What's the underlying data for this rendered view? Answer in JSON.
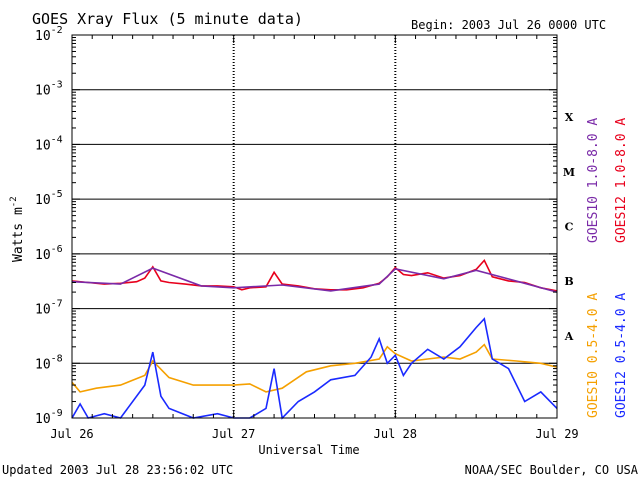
{
  "chart_data": {
    "type": "line",
    "title": "GOES Xray Flux (5 minute data)",
    "begin_label": "Begin:  2003 Jul 26 0000 UTC",
    "xlabel": "Universal Time",
    "ylabel": "Watts m",
    "ylabel_exp": "-2",
    "x_ticks": [
      "Jul 26",
      "Jul 27",
      "Jul 28",
      "Jul 29"
    ],
    "xlim": [
      "2003-07-26 00:00 UTC",
      "2003-07-29 00:00 UTC"
    ],
    "y_scale": "log",
    "ylim": [
      1e-09,
      0.01
    ],
    "y_ticks": [
      {
        "base": "10",
        "exp": "-2",
        "value": 0.01
      },
      {
        "base": "10",
        "exp": "-3",
        "value": 0.001
      },
      {
        "base": "10",
        "exp": "-4",
        "value": 0.0001
      },
      {
        "base": "10",
        "exp": "-5",
        "value": 1e-05
      },
      {
        "base": "10",
        "exp": "-6",
        "value": 1e-06
      },
      {
        "base": "10",
        "exp": "-7",
        "value": 1e-07
      },
      {
        "base": "10",
        "exp": "-8",
        "value": 1e-08
      },
      {
        "base": "10",
        "exp": "-9",
        "value": 1e-09
      }
    ],
    "flare_classes": [
      {
        "label": "X",
        "lower": 0.0001
      },
      {
        "label": "M",
        "lower": 1e-05
      },
      {
        "label": "C",
        "lower": 1e-06
      },
      {
        "label": "B",
        "lower": 1e-07
      },
      {
        "label": "A",
        "lower": 1e-08
      }
    ],
    "grid": true,
    "legend": [
      {
        "name": "GOES10 1.0-8.0 A",
        "color": "#7a2aa8"
      },
      {
        "name": "GOES12 1.0-8.0 A",
        "color": "#e8001c"
      },
      {
        "name": "GOES10 0.5-4.0 A",
        "color": "#f5a000"
      },
      {
        "name": "GOES12 0.5-4.0 A",
        "color": "#1a2aff"
      }
    ],
    "series": [
      {
        "name": "GOES12 1.0-8.0 A",
        "color": "#e8001c",
        "x_days": [
          0.0,
          0.1,
          0.2,
          0.3,
          0.4,
          0.45,
          0.5,
          0.55,
          0.6,
          0.7,
          0.8,
          0.9,
          1.0,
          1.05,
          1.1,
          1.2,
          1.25,
          1.3,
          1.4,
          1.5,
          1.6,
          1.7,
          1.8,
          1.9,
          1.95,
          2.0,
          2.05,
          2.1,
          2.2,
          2.3,
          2.4,
          2.5,
          2.55,
          2.6,
          2.7,
          2.8,
          2.9,
          3.0
        ],
        "values": [
          3.2e-07,
          3e-07,
          2.8e-07,
          2.9e-07,
          3.1e-07,
          3.6e-07,
          5.8e-07,
          3.2e-07,
          3e-07,
          2.8e-07,
          2.6e-07,
          2.6e-07,
          2.5e-07,
          2.2e-07,
          2.4e-07,
          2.5e-07,
          4.6e-07,
          2.8e-07,
          2.6e-07,
          2.3e-07,
          2.2e-07,
          2.2e-07,
          2.4e-07,
          2.9e-07,
          3.8e-07,
          5.6e-07,
          4.2e-07,
          4e-07,
          4.5e-07,
          3.6e-07,
          4e-07,
          5.2e-07,
          7.6e-07,
          3.8e-07,
          3.2e-07,
          3e-07,
          2.4e-07,
          2.1e-07
        ]
      },
      {
        "name": "GOES10 1.0-8.0 A",
        "color": "#7a2aa8",
        "x_days": [
          0.0,
          0.3,
          0.5,
          0.8,
          1.0,
          1.3,
          1.6,
          1.9,
          2.0,
          2.3,
          2.5,
          2.8,
          3.0
        ],
        "values": [
          3.1e-07,
          2.8e-07,
          5.5e-07,
          2.6e-07,
          2.4e-07,
          2.7e-07,
          2.1e-07,
          2.8e-07,
          5.3e-07,
          3.5e-07,
          5e-07,
          2.9e-07,
          2e-07
        ]
      },
      {
        "name": "GOES10 0.5-4.0 A",
        "color": "#f5a000",
        "x_days": [
          0.0,
          0.05,
          0.15,
          0.3,
          0.45,
          0.5,
          0.6,
          0.75,
          0.9,
          1.0,
          1.1,
          1.2,
          1.3,
          1.45,
          1.6,
          1.75,
          1.9,
          1.95,
          2.0,
          2.1,
          2.2,
          2.3,
          2.4,
          2.5,
          2.55,
          2.6,
          2.75,
          2.9,
          3.0
        ],
        "values": [
          4.5e-09,
          3e-09,
          3.5e-09,
          4e-09,
          6e-09,
          1.1e-08,
          5.5e-09,
          4e-09,
          4e-09,
          4e-09,
          4.2e-09,
          3e-09,
          3.5e-09,
          7e-09,
          9e-09,
          1e-08,
          1.2e-08,
          2e-08,
          1.5e-08,
          1.1e-08,
          1.2e-08,
          1.3e-08,
          1.2e-08,
          1.6e-08,
          2.2e-08,
          1.2e-08,
          1.1e-08,
          1e-08,
          8.5e-09
        ]
      },
      {
        "name": "GOES12 0.5-4.0 A",
        "color": "#1a2aff",
        "x_days": [
          0.0,
          0.05,
          0.1,
          0.2,
          0.3,
          0.45,
          0.5,
          0.55,
          0.6,
          0.75,
          0.9,
          1.0,
          1.1,
          1.2,
          1.25,
          1.3,
          1.4,
          1.5,
          1.6,
          1.75,
          1.85,
          1.9,
          1.95,
          2.0,
          2.05,
          2.1,
          2.2,
          2.3,
          2.4,
          2.5,
          2.55,
          2.6,
          2.7,
          2.8,
          2.9,
          3.0
        ],
        "values": [
          1e-09,
          1.8e-09,
          1e-09,
          1.2e-09,
          1e-09,
          4e-09,
          1.6e-08,
          2.5e-09,
          1.5e-09,
          1e-09,
          1.2e-09,
          1e-09,
          1e-09,
          1.5e-09,
          8e-09,
          1e-09,
          2e-09,
          3e-09,
          5e-09,
          6e-09,
          1.3e-08,
          2.8e-08,
          1e-08,
          1.4e-08,
          6e-09,
          1e-08,
          1.8e-08,
          1.2e-08,
          2e-08,
          4.5e-08,
          6.5e-08,
          1.2e-08,
          8e-09,
          2e-09,
          3e-09,
          1.5e-09
        ]
      }
    ]
  },
  "footer": {
    "updated": "Updated 2003 Jul 28 23:56:02 UTC",
    "credit": "NOAA/SEC Boulder, CO USA"
  }
}
